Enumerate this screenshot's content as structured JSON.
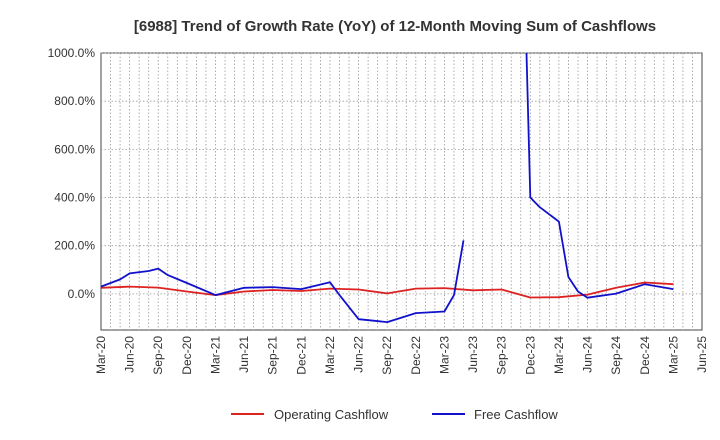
{
  "chart_data": {
    "type": "line",
    "title": "[6988]  Trend of Growth Rate (YoY) of 12-Month Moving Sum of Cashflows",
    "xlabel": "",
    "ylabel": "",
    "ylim": [
      -150,
      1000
    ],
    "grid": true,
    "legend_position": "bottom",
    "x_tick_labels": [
      "Mar-20",
      "Jun-20",
      "Sep-20",
      "Dec-20",
      "Mar-21",
      "Jun-21",
      "Sep-21",
      "Dec-21",
      "Mar-22",
      "Jun-22",
      "Sep-22",
      "Dec-22",
      "Mar-23",
      "Jun-23",
      "Sep-23",
      "Dec-23",
      "Mar-24",
      "Jun-24",
      "Sep-24",
      "Dec-24",
      "Mar-25",
      "Jun-25"
    ],
    "y_ticks": [
      0,
      200,
      400,
      600,
      800,
      1000
    ],
    "y_tick_labels": [
      "0.0%",
      "200.0%",
      "400.0%",
      "600.0%",
      "800.0%",
      "1000.0%"
    ],
    "series": [
      {
        "name": "Operating Cashflow",
        "color": "#dd2222",
        "points": [
          [
            0,
            25
          ],
          [
            3,
            30
          ],
          [
            6,
            26
          ],
          [
            9,
            10
          ],
          [
            12,
            -5
          ],
          [
            15,
            10
          ],
          [
            18,
            16
          ],
          [
            21,
            12
          ],
          [
            24,
            22
          ],
          [
            27,
            18
          ],
          [
            30,
            2
          ],
          [
            33,
            22
          ],
          [
            36,
            24
          ],
          [
            39,
            15
          ],
          [
            42,
            18
          ],
          [
            45,
            -15
          ],
          [
            48,
            -14
          ],
          [
            51,
            -3
          ],
          [
            54,
            25
          ],
          [
            57,
            47
          ],
          [
            60,
            40
          ]
        ]
      },
      {
        "name": "Free Cashflow",
        "color": "#1111cc",
        "points": [
          [
            0,
            30
          ],
          [
            2,
            60
          ],
          [
            3,
            85
          ],
          [
            5,
            95
          ],
          [
            6,
            105
          ],
          [
            7,
            78
          ],
          [
            9,
            45
          ],
          [
            12,
            -5
          ],
          [
            15,
            25
          ],
          [
            18,
            28
          ],
          [
            21,
            20
          ],
          [
            24,
            48
          ],
          [
            25,
            -5
          ],
          [
            27,
            -105
          ],
          [
            30,
            -117
          ],
          [
            33,
            -80
          ],
          [
            36,
            -73
          ],
          [
            37,
            -5
          ],
          [
            38,
            222
          ],
          [
            null,
            null
          ],
          [
            44.6,
            1000
          ],
          [
            45,
            400
          ],
          [
            46,
            360
          ],
          [
            48,
            300
          ],
          [
            49,
            70
          ],
          [
            50,
            10
          ],
          [
            51,
            -16
          ],
          [
            54,
            1
          ],
          [
            57,
            40
          ],
          [
            60,
            20
          ]
        ]
      }
    ]
  }
}
